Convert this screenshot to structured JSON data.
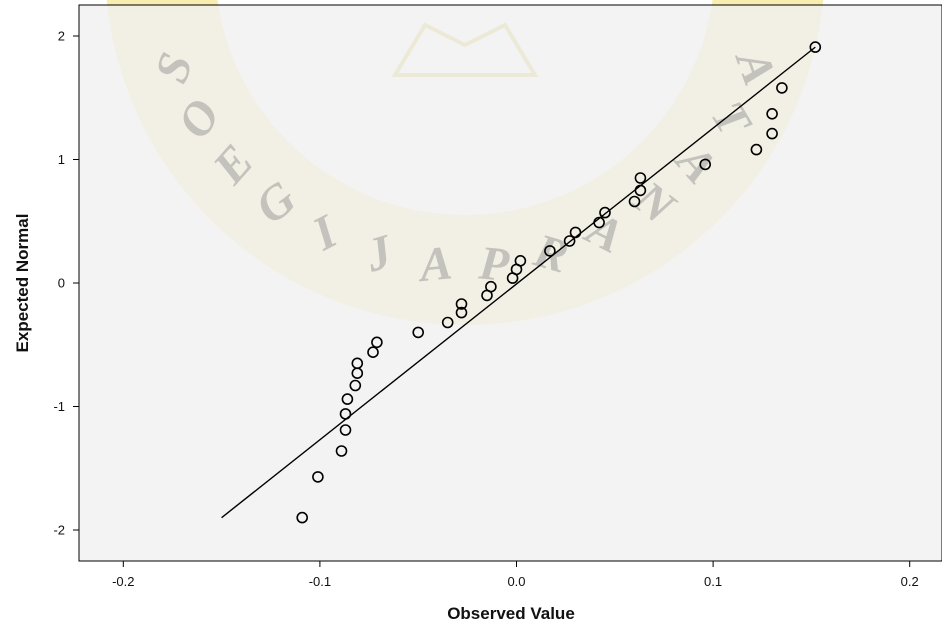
{
  "chart_data": {
    "type": "scatter",
    "title": "",
    "xlabel": "Observed Value",
    "ylabel": "Expected Normal",
    "xlim": [
      -0.22,
      0.22
    ],
    "ylim": [
      -2.25,
      2.2
    ],
    "x_ticks": [
      -0.2,
      -0.1,
      0.0,
      0.1,
      0.2
    ],
    "x_tick_labels": [
      "-0.2",
      "-0.1",
      "0.0",
      "0.1",
      "0.2"
    ],
    "y_ticks": [
      -2,
      -1,
      0,
      1,
      2
    ],
    "y_tick_labels": [
      "-2",
      "-1",
      "0",
      "1",
      "2"
    ],
    "grid": false,
    "background": "#f0f0f0",
    "series": [
      {
        "points": [
          [
            -0.109,
            -1.9
          ],
          [
            -0.101,
            -1.57
          ],
          [
            -0.089,
            -1.36
          ],
          [
            -0.087,
            -1.19
          ],
          [
            -0.087,
            -1.06
          ],
          [
            -0.086,
            -0.94
          ],
          [
            -0.082,
            -0.83
          ],
          [
            -0.081,
            -0.73
          ],
          [
            -0.081,
            -0.65
          ],
          [
            -0.073,
            -0.56
          ],
          [
            -0.071,
            -0.48
          ],
          [
            -0.05,
            -0.4
          ],
          [
            -0.035,
            -0.32
          ],
          [
            -0.028,
            -0.24
          ],
          [
            -0.028,
            -0.17
          ],
          [
            -0.015,
            -0.1
          ],
          [
            -0.013,
            -0.03
          ],
          [
            -0.002,
            0.04
          ],
          [
            0.0,
            0.11
          ],
          [
            0.002,
            0.18
          ],
          [
            0.017,
            0.26
          ],
          [
            0.027,
            0.34
          ],
          [
            0.03,
            0.41
          ],
          [
            0.042,
            0.49
          ],
          [
            0.045,
            0.57
          ],
          [
            0.06,
            0.66
          ],
          [
            0.063,
            0.75
          ],
          [
            0.063,
            0.85
          ],
          [
            0.096,
            0.96
          ],
          [
            0.122,
            1.08
          ],
          [
            0.13,
            1.21
          ],
          [
            0.13,
            1.37
          ],
          [
            0.135,
            1.58
          ],
          [
            0.152,
            1.91
          ]
        ],
        "marker_color": "#000000"
      }
    ],
    "reference_line": {
      "from": [
        -0.15,
        -1.9
      ],
      "to": [
        0.152,
        1.91
      ],
      "color": "#000000"
    }
  },
  "watermark": {
    "letters": [
      "S",
      "O",
      "E",
      "G",
      "I",
      "J",
      "A",
      "P",
      "R",
      "A",
      "N",
      "A",
      "T",
      "A"
    ],
    "color": "#f0e070"
  }
}
